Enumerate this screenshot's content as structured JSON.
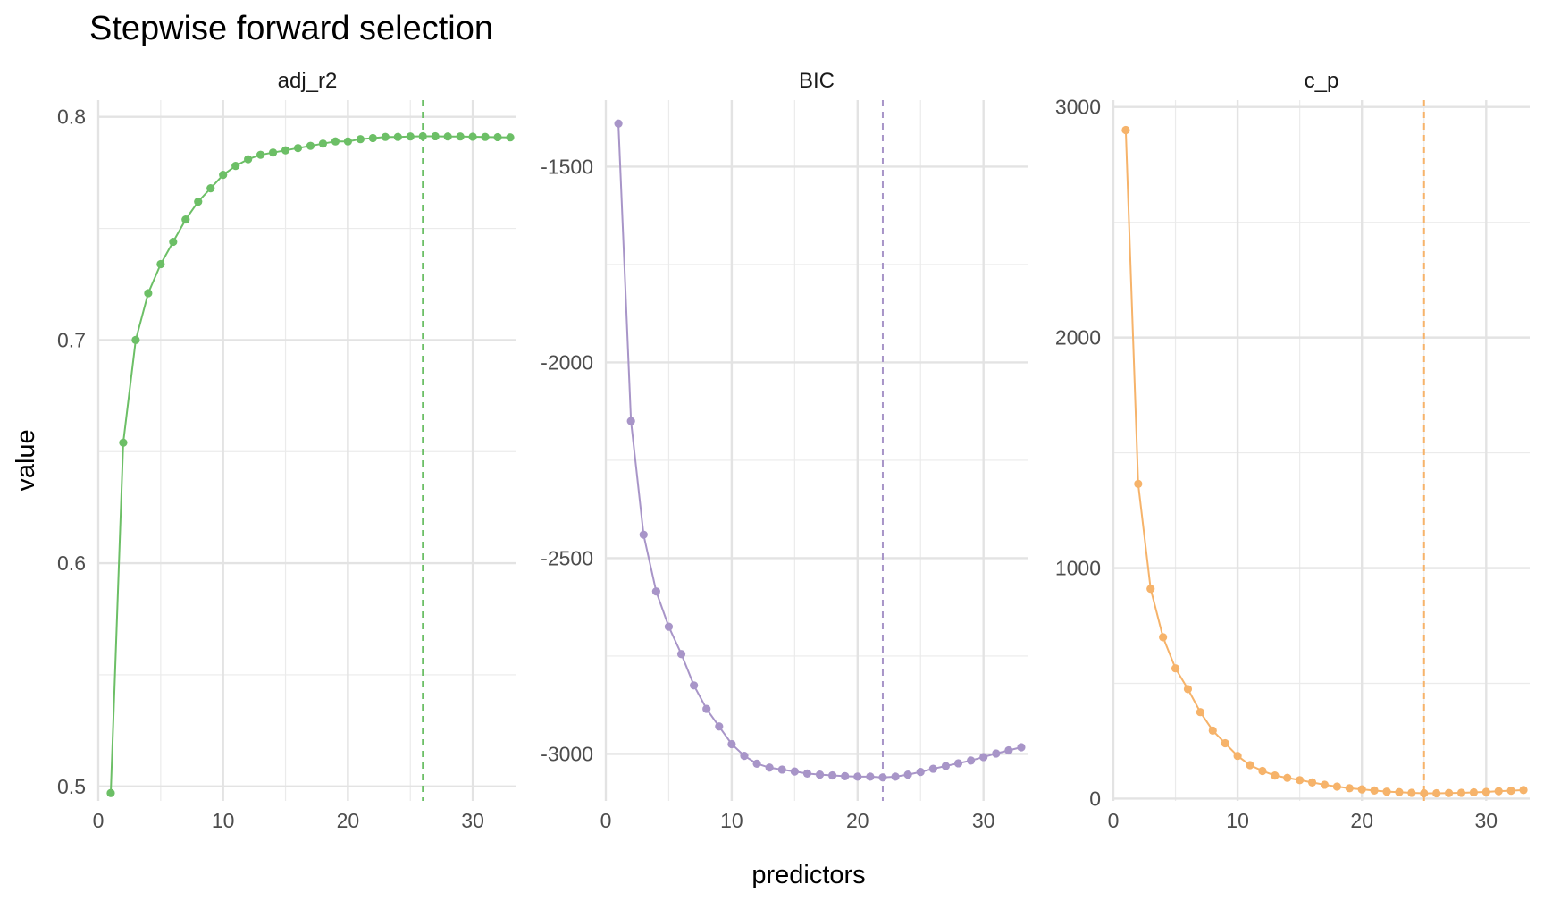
{
  "title": "Stepwise forward selection",
  "xlabel": "predictors",
  "ylabel": "value",
  "chart_data": {
    "type": "line",
    "title": "Stepwise forward selection",
    "xlabel": "predictors",
    "ylabel": "value",
    "grid": true,
    "legend": "none",
    "x": [
      1,
      2,
      3,
      4,
      5,
      6,
      7,
      8,
      9,
      10,
      11,
      12,
      13,
      14,
      15,
      16,
      17,
      18,
      19,
      20,
      21,
      22,
      23,
      24,
      25,
      26,
      27,
      28,
      29,
      30,
      31,
      32,
      33
    ],
    "panels": [
      {
        "name": "adj_r2",
        "color": "#6cbf66",
        "xlim": [
          0,
          33.5
        ],
        "xticks": [
          0,
          10,
          20,
          30
        ],
        "ylim": [
          0.4935,
          0.8075
        ],
        "yticks": [
          0.5,
          0.6,
          0.7,
          0.8
        ],
        "ytick_labels": [
          "0.5",
          "0.6",
          "0.7",
          "0.8"
        ],
        "yminor": [
          0.55,
          0.65,
          0.75
        ],
        "best_x": 26,
        "values": [
          0.497,
          0.654,
          0.7,
          0.721,
          0.734,
          0.744,
          0.754,
          0.762,
          0.768,
          0.774,
          0.778,
          0.781,
          0.783,
          0.784,
          0.785,
          0.786,
          0.787,
          0.788,
          0.789,
          0.789,
          0.79,
          0.7905,
          0.791,
          0.791,
          0.7912,
          0.7913,
          0.7913,
          0.7912,
          0.7912,
          0.7911,
          0.791,
          0.7909,
          0.7908
        ]
      },
      {
        "name": "BIC",
        "color": "#a895c8",
        "xlim": [
          0,
          33.5
        ],
        "xticks": [
          0,
          10,
          20,
          30
        ],
        "ylim": [
          -3120,
          -1330
        ],
        "yticks": [
          -3000,
          -2500,
          -2000,
          -1500
        ],
        "ytick_labels": [
          "-3000",
          "-2500",
          "-2000",
          "-1500"
        ],
        "yminor": [
          -2750,
          -2250,
          -1750
        ],
        "best_x": 22,
        "values": [
          -1390,
          -2150,
          -2440,
          -2585,
          -2675,
          -2745,
          -2825,
          -2885,
          -2930,
          -2975,
          -3005,
          -3025,
          -3035,
          -3040,
          -3045,
          -3050,
          -3053,
          -3055,
          -3057,
          -3058,
          -3058,
          -3060,
          -3058,
          -3053,
          -3046,
          -3038,
          -3031,
          -3024,
          -3017,
          -3008,
          -2999,
          -2991,
          -2983
        ]
      },
      {
        "name": "c_p",
        "color": "#f6b36a",
        "xlim": [
          0,
          33.5
        ],
        "xticks": [
          0,
          10,
          20,
          30
        ],
        "ylim": [
          -10,
          3030
        ],
        "yticks": [
          0,
          1000,
          2000,
          3000
        ],
        "ytick_labels": [
          "0",
          "1000",
          "2000",
          "3000"
        ],
        "yminor": [
          500,
          1500,
          2500
        ],
        "best_x": 25,
        "values": [
          2900,
          1365,
          910,
          700,
          565,
          475,
          375,
          295,
          240,
          185,
          145,
          120,
          100,
          90,
          80,
          70,
          60,
          52,
          45,
          40,
          35,
          30,
          28,
          25,
          23,
          23,
          24,
          25,
          27,
          29,
          32,
          34,
          37
        ]
      }
    ]
  }
}
